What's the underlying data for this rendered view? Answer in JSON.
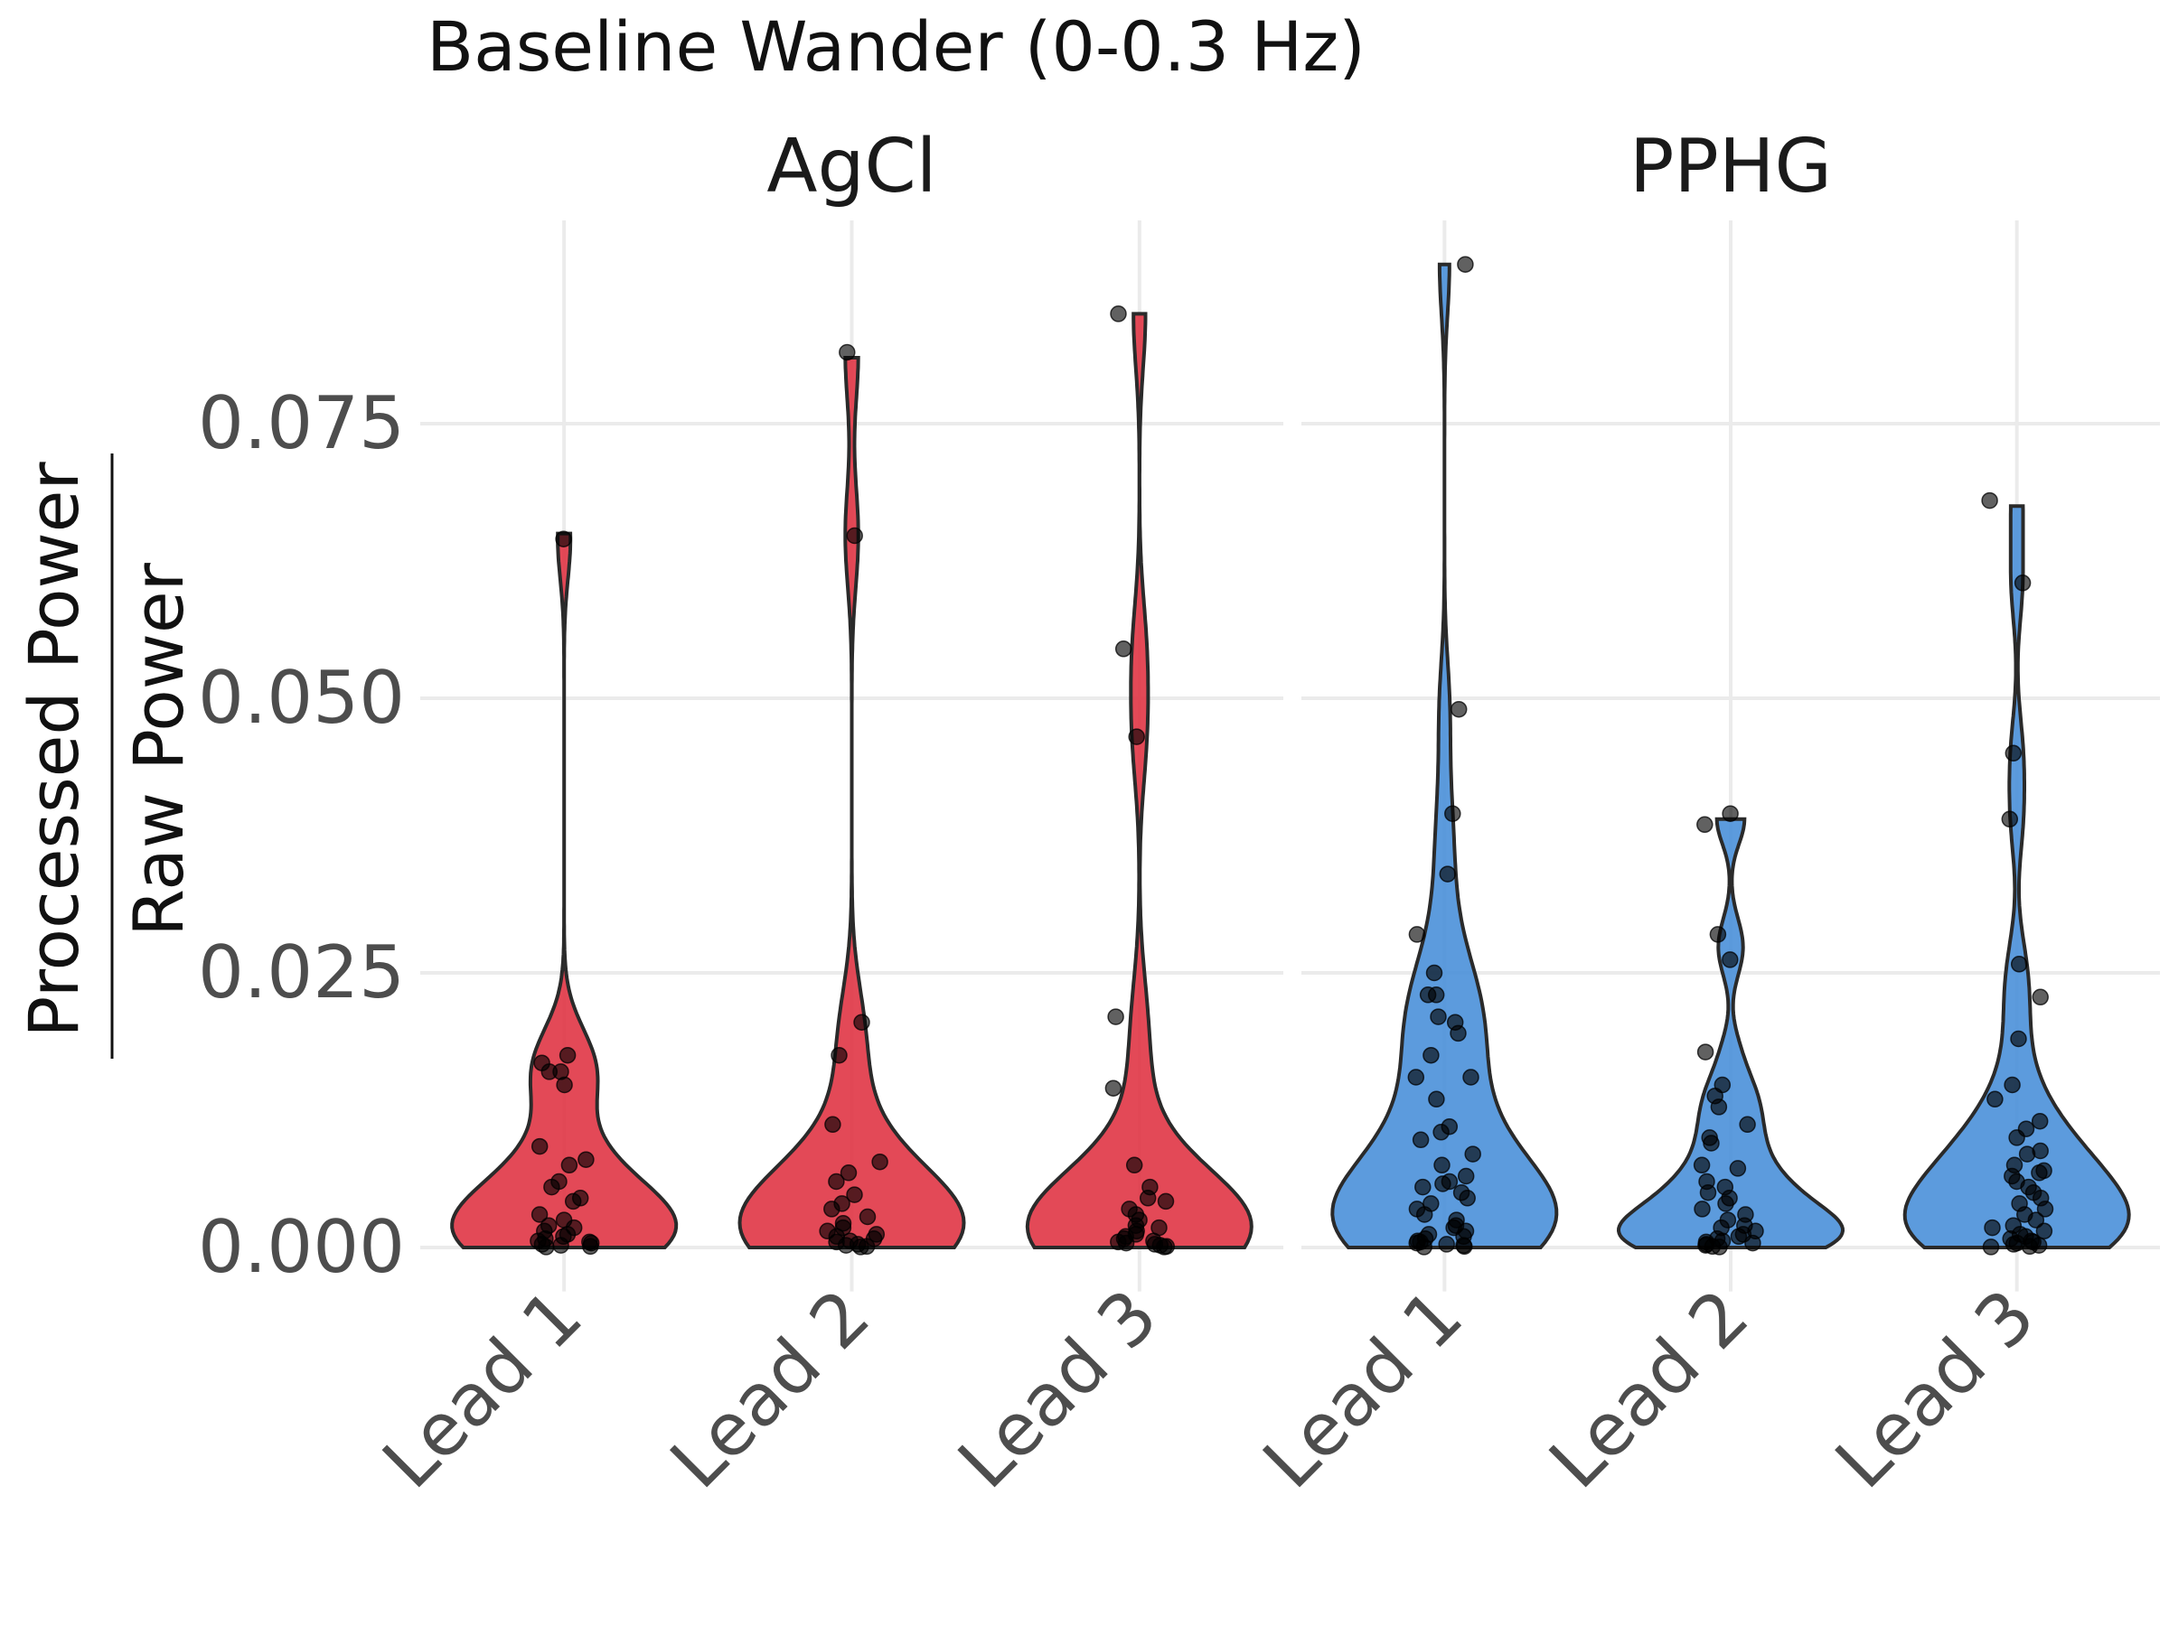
{
  "chart_data": {
    "type": "violin",
    "title": "Baseline Wander (0-0.3 Hz)",
    "ylabel_numerator": "Processed Power",
    "ylabel_denominator": "Raw Power",
    "xlabel": "",
    "ylim": [
      -0.004,
      0.0935
    ],
    "yticks": [
      0.0,
      0.025,
      0.05,
      0.075
    ],
    "ytick_labels": [
      "0.000",
      "0.025",
      "0.050",
      "0.075"
    ],
    "categories": [
      "Lead 1",
      "Lead 2",
      "Lead 3"
    ],
    "grid": true,
    "legend": "none",
    "panels": [
      {
        "name": "AgCl",
        "color": "#e03545",
        "series": [
          {
            "category": "Lead 1",
            "max": 0.065,
            "points": [
              0.0645,
              0.0175,
              0.0168,
              0.016,
              0.016,
              0.0148,
              0.0092,
              0.008,
              0.0075,
              0.006,
              0.0055,
              0.0045,
              0.0042,
              0.003,
              0.0025,
              0.002,
              0.0018,
              0.0015,
              0.0012,
              0.001,
              0.0008,
              0.0006,
              0.0005,
              0.0004,
              0.0003,
              0.0002,
              0.0001,
              5e-05
            ]
          },
          {
            "category": "Lead 2",
            "max": 0.081,
            "points": [
              0.0815,
              0.0648,
              0.0205,
              0.0175,
              0.0112,
              0.0078,
              0.0068,
              0.006,
              0.0048,
              0.004,
              0.0035,
              0.0028,
              0.0022,
              0.0018,
              0.0015,
              0.0012,
              0.001,
              0.0008,
              0.0006,
              0.0005,
              0.0003,
              0.0002,
              0.0001,
              5e-05
            ]
          },
          {
            "category": "Lead 3",
            "max": 0.085,
            "points": [
              0.085,
              0.0545,
              0.0465,
              0.021,
              0.0145,
              0.0075,
              0.0055,
              0.0045,
              0.0042,
              0.0035,
              0.003,
              0.0025,
              0.002,
              0.0018,
              0.0015,
              0.0012,
              0.001,
              0.0008,
              0.0006,
              0.0005,
              0.0004,
              0.0003,
              0.0002,
              0.0001,
              5e-05
            ]
          }
        ]
      },
      {
        "name": "PPHG",
        "color": "#4a90d9",
        "series": [
          {
            "category": "Lead 1",
            "max": 0.0895,
            "points": [
              0.0895,
              0.049,
              0.0395,
              0.034,
              0.0285,
              0.025,
              0.023,
              0.023,
              0.021,
              0.0205,
              0.0195,
              0.0175,
              0.0155,
              0.0155,
              0.0135,
              0.011,
              0.0105,
              0.0098,
              0.0085,
              0.0075,
              0.0065,
              0.006,
              0.0058,
              0.0055,
              0.005,
              0.0045,
              0.004,
              0.0035,
              0.003,
              0.0025,
              0.002,
              0.0018,
              0.0015,
              0.0012,
              0.001,
              0.0008,
              0.0006,
              0.0005,
              0.0004,
              0.0003,
              0.0002,
              0.0001,
              5e-05
            ]
          },
          {
            "category": "Lead 2",
            "max": 0.039,
            "points": [
              0.0395,
              0.0385,
              0.0285,
              0.0262,
              0.0178,
              0.0148,
              0.0138,
              0.0128,
              0.0112,
              0.01,
              0.0095,
              0.0075,
              0.0072,
              0.006,
              0.0055,
              0.005,
              0.0045,
              0.004,
              0.0035,
              0.003,
              0.0025,
              0.002,
              0.0018,
              0.0015,
              0.0012,
              0.001,
              0.0008,
              0.0006,
              0.0005,
              0.0004,
              0.0003,
              0.0002,
              0.0001,
              5e-05
            ]
          },
          {
            "category": "Lead 3",
            "max": 0.0675,
            "points": [
              0.068,
              0.0605,
              0.045,
              0.039,
              0.0258,
              0.0228,
              0.019,
              0.0148,
              0.0135,
              0.0115,
              0.0108,
              0.01,
              0.0088,
              0.0085,
              0.0075,
              0.007,
              0.0068,
              0.0065,
              0.006,
              0.0055,
              0.005,
              0.0045,
              0.004,
              0.0035,
              0.003,
              0.0025,
              0.002,
              0.0018,
              0.0015,
              0.0012,
              0.001,
              0.0008,
              0.0006,
              0.0005,
              0.0004,
              0.0003,
              0.0002,
              0.0001,
              5e-05
            ]
          }
        ]
      }
    ]
  }
}
